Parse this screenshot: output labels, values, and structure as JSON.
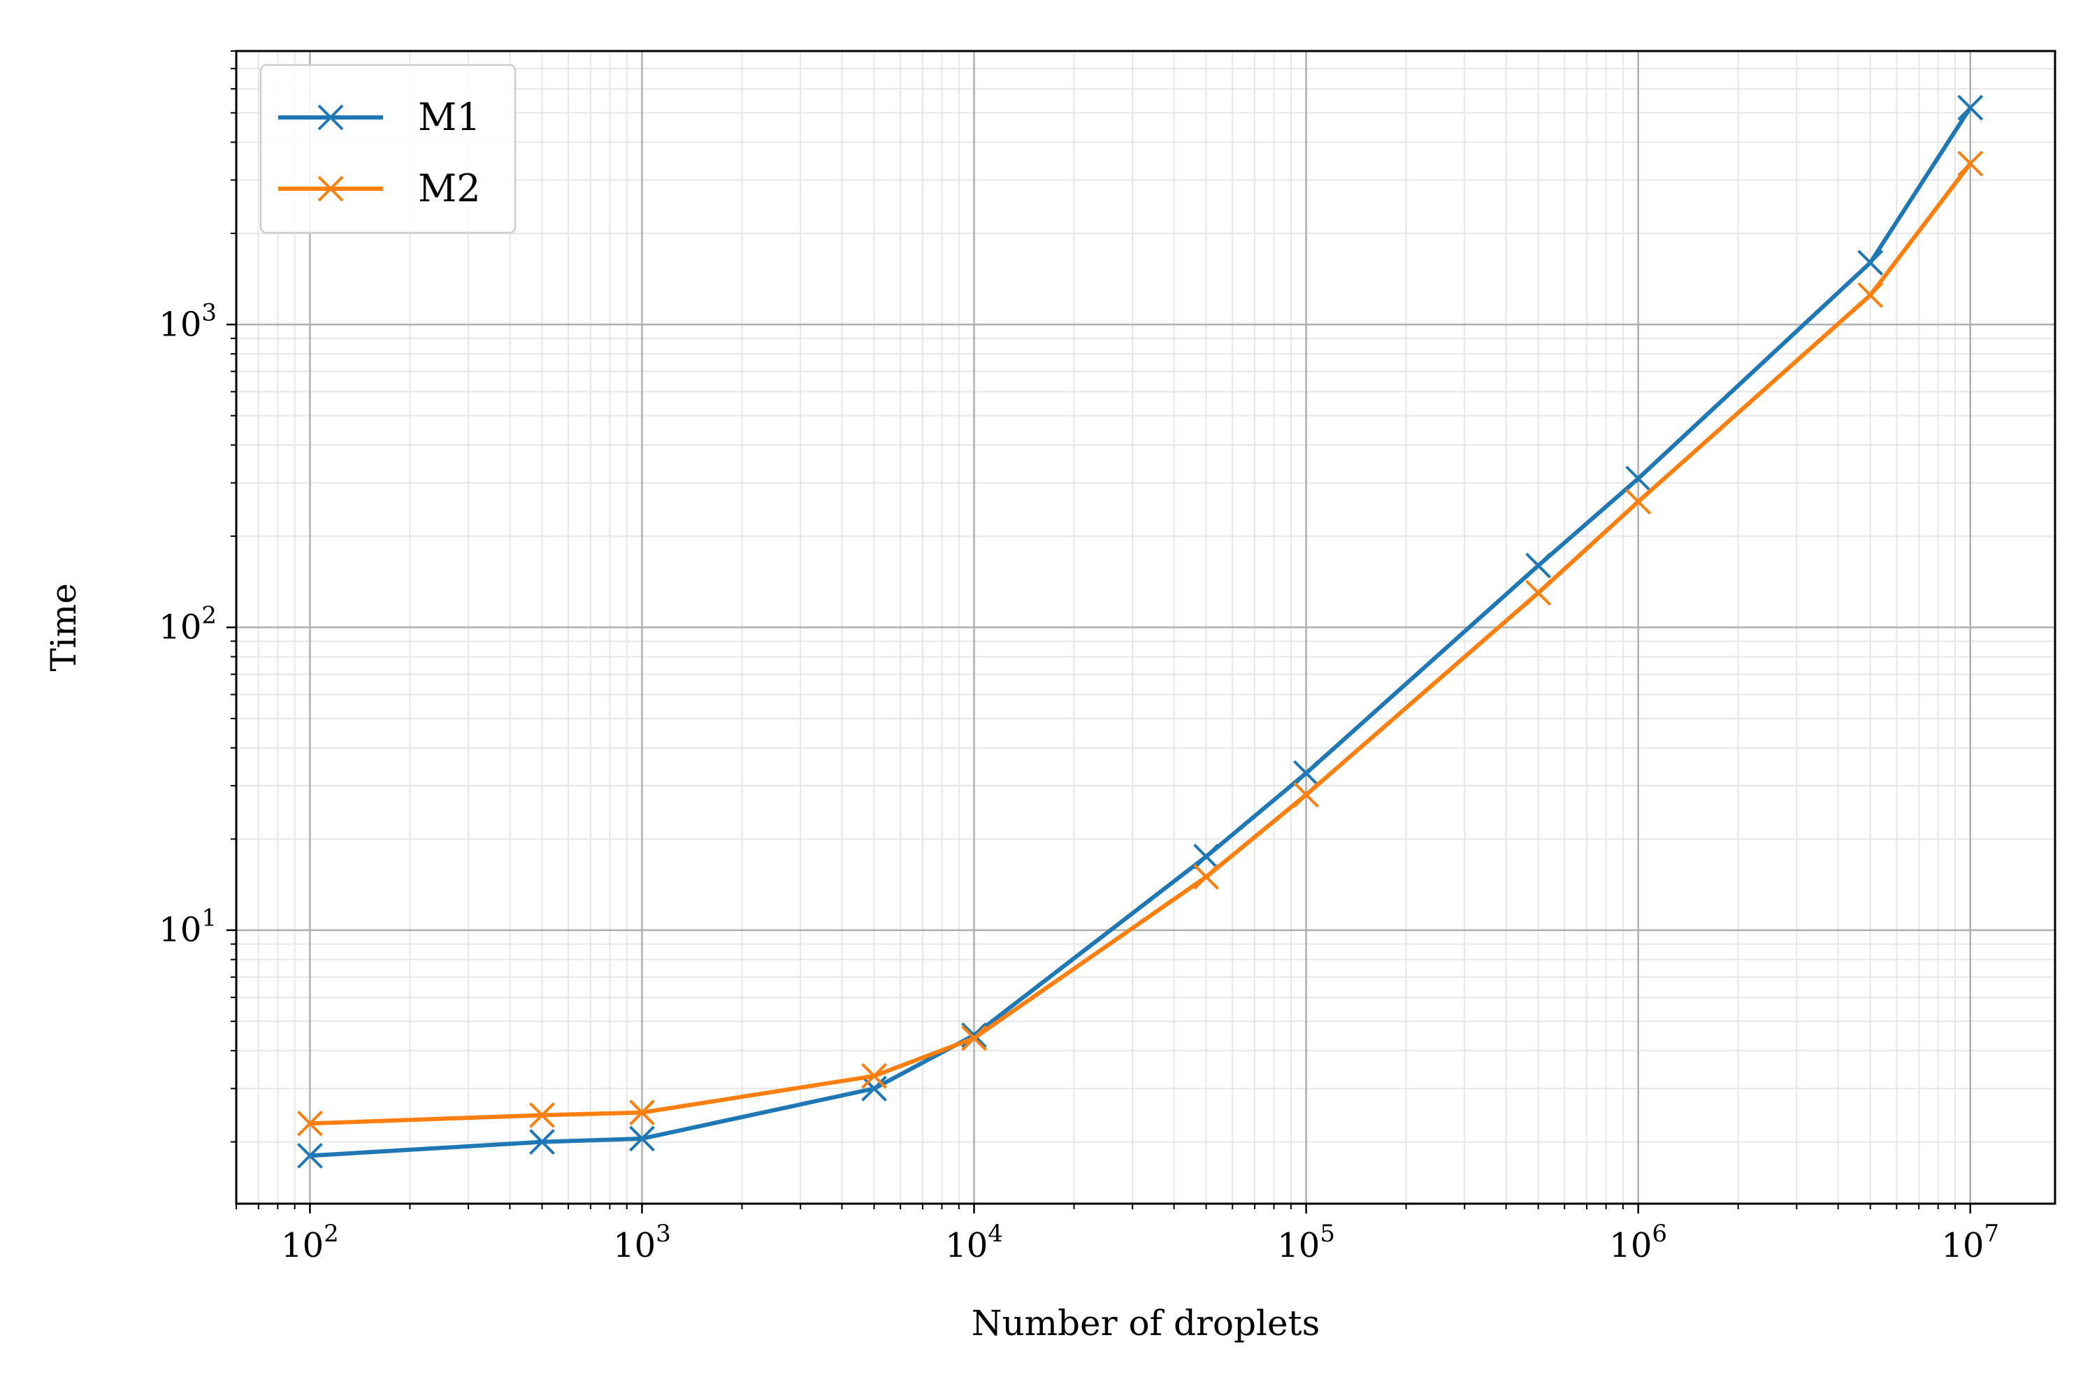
{
  "chart_data": {
    "type": "line",
    "title": "",
    "xlabel": "Number of droplets",
    "ylabel": "Time",
    "xscale": "log",
    "yscale": "log",
    "xlim": [
      60,
      18000000
    ],
    "ylim": [
      1.25,
      8000
    ],
    "grid": true,
    "legend_position": "top-left",
    "x_ticks": [
      {
        "base": "10",
        "exp": "2",
        "value": 100
      },
      {
        "base": "10",
        "exp": "3",
        "value": 1000
      },
      {
        "base": "10",
        "exp": "4",
        "value": 10000
      },
      {
        "base": "10",
        "exp": "5",
        "value": 100000
      },
      {
        "base": "10",
        "exp": "6",
        "value": 1000000
      },
      {
        "base": "10",
        "exp": "7",
        "value": 10000000
      }
    ],
    "y_ticks": [
      {
        "base": "10",
        "exp": "1",
        "value": 10
      },
      {
        "base": "10",
        "exp": "2",
        "value": 100
      },
      {
        "base": "10",
        "exp": "3",
        "value": 1000
      }
    ],
    "x": [
      100,
      500,
      1000,
      5000,
      10000,
      50000,
      100000,
      500000,
      1000000,
      5000000,
      10000000
    ],
    "series": [
      {
        "name": "M1",
        "color": "#1f77b4",
        "marker": "x",
        "values": [
          1.8,
          2.0,
          2.05,
          3.0,
          4.5,
          17.5,
          33,
          160,
          310,
          1600,
          5200
        ]
      },
      {
        "name": "M2",
        "color": "#ff7f0e",
        "marker": "x",
        "values": [
          2.3,
          2.45,
          2.5,
          3.3,
          4.4,
          15.0,
          28,
          130,
          260,
          1250,
          3400
        ]
      }
    ]
  }
}
